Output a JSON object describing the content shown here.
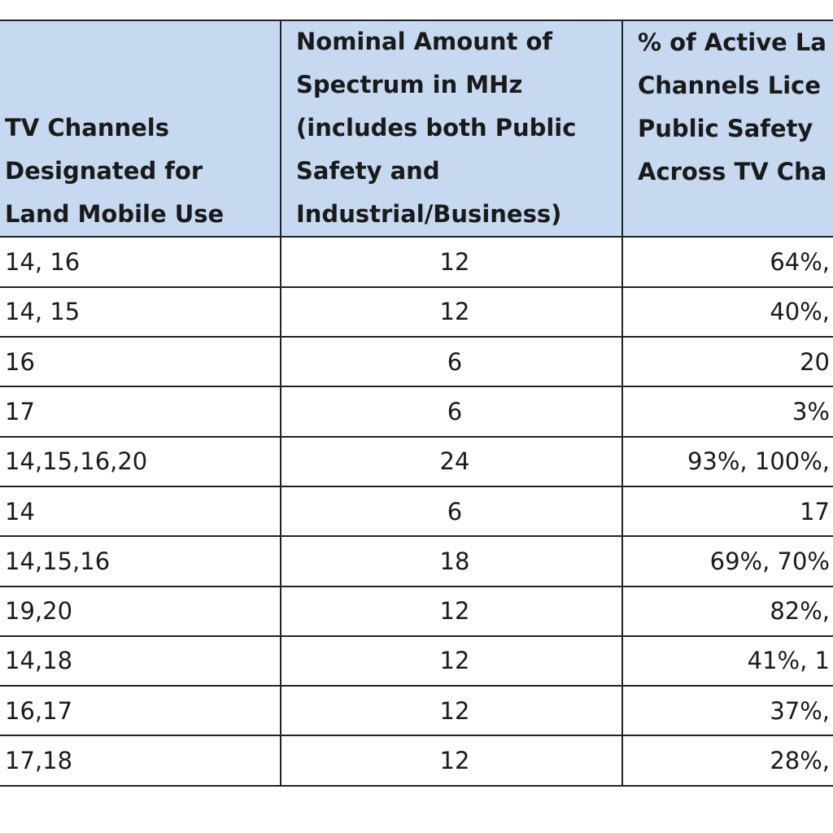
{
  "table": {
    "header": [
      [
        "TV Channels",
        "Designated for",
        "Land Mobile Use"
      ],
      [
        "Nominal Amount of",
        "Spectrum in MHz",
        "(includes both Public",
        "Safety and",
        "Industrial/Business)"
      ],
      [
        "% of Active La",
        "Channels Lice",
        "Public Safety",
        "Across TV Cha"
      ]
    ],
    "rows": [
      [
        "14, 16",
        "12",
        "64%,"
      ],
      [
        "14, 15",
        "12",
        "40%,"
      ],
      [
        "16",
        "6",
        "20"
      ],
      [
        "17",
        "6",
        "3%"
      ],
      [
        "14,15,16,20",
        "24",
        "93%, 100%,"
      ],
      [
        "14",
        "6",
        "17"
      ],
      [
        "14,15,16",
        "18",
        "69%, 70%"
      ],
      [
        "19,20",
        "12",
        "82%,"
      ],
      [
        "14,18",
        "12",
        "41%, 1"
      ],
      [
        "16,17",
        "12",
        "37%,"
      ],
      [
        "17,18",
        "12",
        "28%,"
      ]
    ]
  }
}
